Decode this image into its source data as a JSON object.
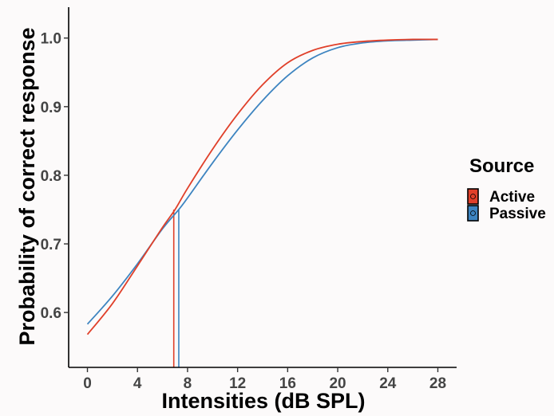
{
  "chart_data": {
    "type": "line",
    "xlabel": "Intensities (dB SPL)",
    "ylabel": "Probability of correct response",
    "xlim": [
      -1.5,
      29.5
    ],
    "ylim": [
      0.52,
      1.045
    ],
    "x_ticks": [
      "0",
      "4",
      "8",
      "12",
      "16",
      "20",
      "24",
      "28"
    ],
    "y_ticks": [
      "0.6",
      "0.7",
      "0.8",
      "0.9",
      "1.0"
    ],
    "grid": false,
    "legend": {
      "title": "Source",
      "position": "right"
    },
    "series": [
      {
        "name": "Active",
        "color": "#e0402a",
        "x": [
          0,
          2,
          4,
          6,
          7,
          8,
          10,
          12,
          14,
          16,
          18,
          20,
          22,
          24,
          26,
          28
        ],
        "y": [
          0.568,
          0.613,
          0.668,
          0.724,
          0.75,
          0.781,
          0.838,
          0.889,
          0.932,
          0.964,
          0.982,
          0.991,
          0.995,
          0.997,
          0.998,
          0.998
        ],
        "threshold_x": 6.9,
        "threshold_y": 0.75
      },
      {
        "name": "Passive",
        "color": "#3d84c0",
        "x": [
          0,
          2,
          4,
          6,
          7.3,
          8,
          10,
          12,
          14,
          16,
          18,
          20,
          22,
          24,
          26,
          28
        ],
        "y": [
          0.583,
          0.624,
          0.671,
          0.722,
          0.75,
          0.767,
          0.818,
          0.866,
          0.909,
          0.945,
          0.971,
          0.986,
          0.993,
          0.996,
          0.997,
          0.998
        ],
        "threshold_x": 7.3,
        "threshold_y": 0.75
      }
    ]
  }
}
